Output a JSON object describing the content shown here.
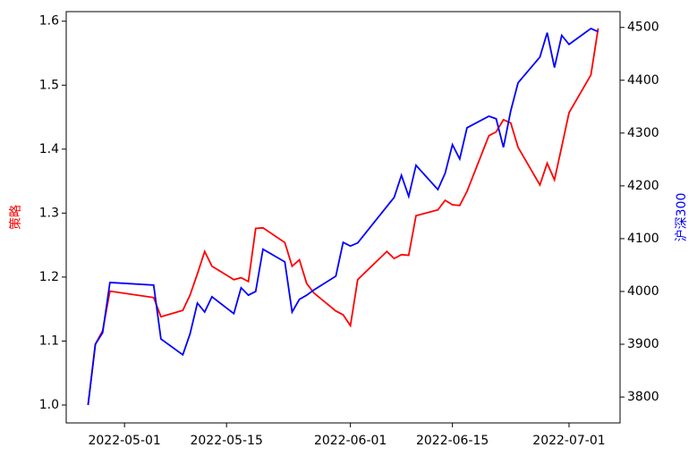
{
  "chart_data": {
    "type": "line",
    "y_label": "策略",
    "y2_label": "沪深300",
    "x": [
      "2022-04-26",
      "2022-04-27",
      "2022-04-28",
      "2022-04-29",
      "2022-05-05",
      "2022-05-06",
      "2022-05-09",
      "2022-05-10",
      "2022-05-11",
      "2022-05-12",
      "2022-05-13",
      "2022-05-16",
      "2022-05-17",
      "2022-05-18",
      "2022-05-19",
      "2022-05-20",
      "2022-05-23",
      "2022-05-24",
      "2022-05-25",
      "2022-05-26",
      "2022-05-27",
      "2022-05-30",
      "2022-05-31",
      "2022-06-01",
      "2022-06-02",
      "2022-06-06",
      "2022-06-07",
      "2022-06-08",
      "2022-06-09",
      "2022-06-10",
      "2022-06-13",
      "2022-06-14",
      "2022-06-15",
      "2022-06-16",
      "2022-06-17",
      "2022-06-20",
      "2022-06-21",
      "2022-06-22",
      "2022-06-23",
      "2022-06-24",
      "2022-06-27",
      "2022-06-28",
      "2022-06-29",
      "2022-06-30",
      "2022-07-01",
      "2022-07-04",
      "2022-07-05"
    ],
    "series": [
      {
        "name": "策略",
        "color": "#ff0000",
        "axis": "y",
        "values": [
          1.0,
          1.095,
          1.116,
          1.178,
          1.168,
          1.138,
          1.148,
          1.172,
          1.205,
          1.24,
          1.217,
          1.196,
          1.199,
          1.193,
          1.276,
          1.277,
          1.254,
          1.217,
          1.227,
          1.19,
          1.175,
          1.147,
          1.141,
          1.124,
          1.196,
          1.24,
          1.229,
          1.235,
          1.234,
          1.296,
          1.305,
          1.32,
          1.313,
          1.312,
          1.334,
          1.421,
          1.427,
          1.446,
          1.441,
          1.403,
          1.344,
          1.378,
          1.352,
          1.404,
          1.457,
          1.516,
          1.589
        ]
      },
      {
        "name": "沪深300",
        "color": "#0000ff",
        "axis": "y2",
        "values": [
          3785,
          3900,
          3922,
          4017,
          4012,
          3910,
          3880,
          3920,
          3978,
          3961,
          3990,
          3958,
          4007,
          3993,
          4000,
          4080,
          4056,
          3961,
          3985,
          3993,
          4003,
          4029,
          4093,
          4086,
          4092,
          4161,
          4178,
          4220,
          4180,
          4239,
          4193,
          4224,
          4278,
          4251,
          4310,
          4332,
          4327,
          4273,
          4342,
          4395,
          4444,
          4490,
          4424,
          4485,
          4468,
          4498,
          4492
        ]
      }
    ],
    "xlim": [
      "2022-04-23",
      "2022-07-08"
    ],
    "xticks": [
      "2022-05-01",
      "2022-05-15",
      "2022-06-01",
      "2022-06-15",
      "2022-07-01"
    ],
    "ylim": [
      0.972,
      1.615
    ],
    "yticks": [
      {
        "value": 1,
        "label": "1.0"
      },
      1.1,
      1.2,
      1.3,
      1.4,
      1.5,
      1.6
    ],
    "y2lim": [
      3751,
      4530
    ],
    "y2ticks": [
      3800,
      3900,
      4000,
      4100,
      4200,
      4300,
      4400,
      4500
    ],
    "grid": false
  }
}
